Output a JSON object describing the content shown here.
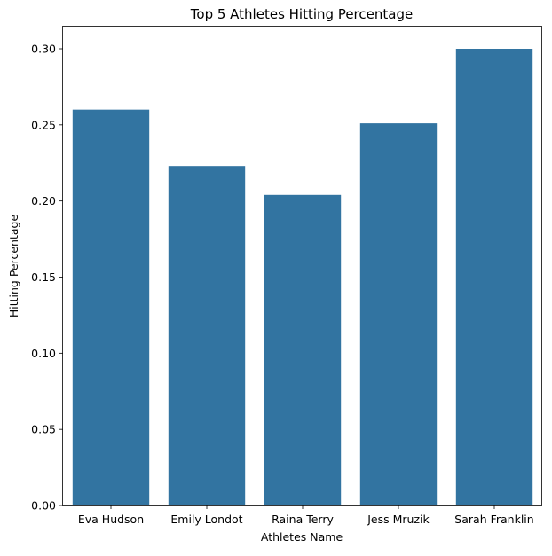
{
  "chart_data": {
    "type": "bar",
    "title": "Top 5 Athletes Hitting Percentage",
    "xlabel": "Athletes Name",
    "ylabel": "Hitting Percentage",
    "categories": [
      "Eva Hudson",
      "Emily Londot",
      "Raina Terry",
      "Jess Mruzik",
      "Sarah Franklin"
    ],
    "values": [
      0.26,
      0.223,
      0.204,
      0.251,
      0.3
    ],
    "ylim": [
      0,
      0.3
    ],
    "yticks": [
      0.0,
      0.05,
      0.1,
      0.15,
      0.2,
      0.25,
      0.3
    ],
    "ytick_labels": [
      "0.00",
      "0.05",
      "0.10",
      "0.15",
      "0.20",
      "0.25",
      "0.30"
    ],
    "grid": false,
    "legend": "none",
    "bar_color": "#3274a1",
    "axis_color": "#000000"
  }
}
